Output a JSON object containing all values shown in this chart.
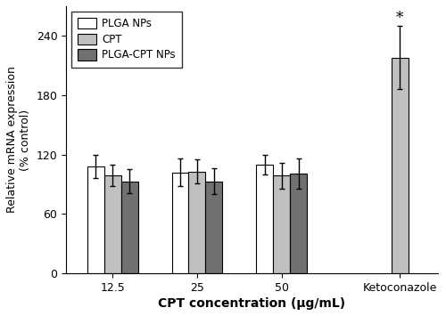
{
  "categories": [
    "12.5",
    "25",
    "50",
    "Ketoconazole"
  ],
  "series_order": [
    "PLGA NPs",
    "CPT",
    "PLGA-CPT NPs"
  ],
  "series": {
    "PLGA NPs": {
      "values": [
        108,
        102,
        110,
        null
      ],
      "errors": [
        12,
        14,
        10,
        null
      ],
      "color": "#ffffff",
      "edgecolor": "#000000"
    },
    "CPT": {
      "values": [
        99,
        103,
        99,
        218
      ],
      "errors": [
        11,
        12,
        13,
        32
      ],
      "color": "#c0c0c0",
      "edgecolor": "#000000"
    },
    "PLGA-CPT NPs": {
      "values": [
        93,
        93,
        101,
        null
      ],
      "errors": [
        12,
        13,
        15,
        null
      ],
      "color": "#707070",
      "edgecolor": "#000000"
    }
  },
  "ylabel": "Relative mRNA expression\n(% control)",
  "xlabel": "CPT concentration (μg/mL)",
  "ylim": [
    0,
    270
  ],
  "yticks": [
    0,
    60,
    120,
    180,
    240
  ],
  "legend_labels": [
    "PLGA NPs",
    "CPT",
    "PLGA-CPT NPs"
  ],
  "legend_colors": [
    "#ffffff",
    "#c0c0c0",
    "#707070"
  ],
  "significance_label": "*",
  "bar_width": 0.2,
  "figsize": [
    5.0,
    3.55
  ],
  "dpi": 100
}
